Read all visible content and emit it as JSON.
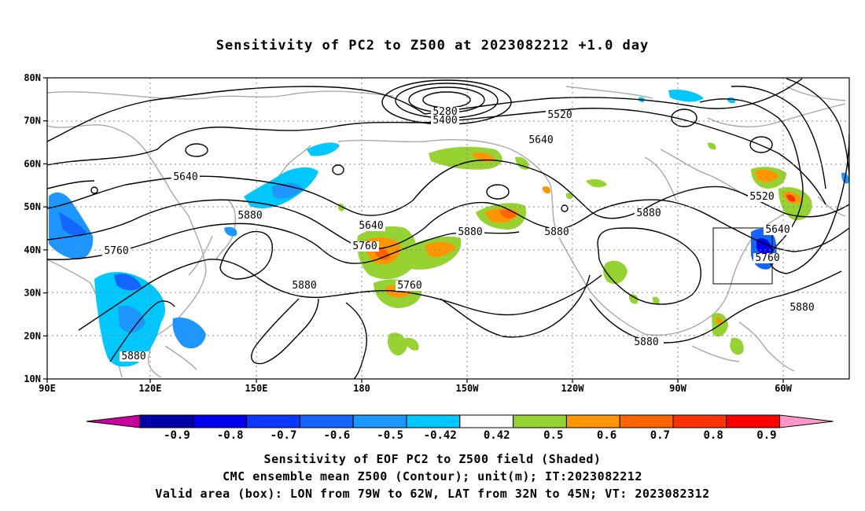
{
  "title": "Sensitivity of PC2 to Z500 at 2023082212 +1.0 day",
  "map": {
    "lat_labels": [
      "80N",
      "70N",
      "60N",
      "50N",
      "40N",
      "30N",
      "20N",
      "10N"
    ],
    "lon_labels": [
      "90E",
      "120E",
      "150E",
      "180",
      "150W",
      "120W",
      "90W",
      "60W"
    ],
    "contour_labels": [
      {
        "text": "5280"
      },
      {
        "text": "5400"
      },
      {
        "text": "5520"
      },
      {
        "text": "5640"
      },
      {
        "text": "5640"
      },
      {
        "text": "5880"
      },
      {
        "text": "5760"
      },
      {
        "text": "5640"
      },
      {
        "text": "5760"
      },
      {
        "text": "5880"
      },
      {
        "text": "5880"
      },
      {
        "text": "5880"
      },
      {
        "text": "5760"
      },
      {
        "text": "5880"
      },
      {
        "text": "5520"
      },
      {
        "text": "5640"
      },
      {
        "text": "5760"
      },
      {
        "text": "5880"
      },
      {
        "text": "5880"
      }
    ],
    "valid_box": {
      "lon_from": "79W",
      "lon_to": "62W",
      "lat_from": "32N",
      "lat_to": "45N"
    }
  },
  "colorbar": {
    "labels": [
      "-0.9",
      "-0.8",
      "-0.7",
      "-0.6",
      "-0.5",
      "-0.42",
      "0.42",
      "0.5",
      "0.6",
      "0.7",
      "0.8",
      "0.9"
    ],
    "colors": [
      "#0000aa",
      "#0000ee",
      "#0b38ff",
      "#1464ff",
      "#1e96ff",
      "#00c8ff",
      "#ffffff",
      "#96d232",
      "#ff9600",
      "#ff6400",
      "#ff3200",
      "#ff0000"
    ],
    "low_arrow_color": "#c800a0",
    "high_arrow_color": "#ff96c8"
  },
  "captions": {
    "line1": "Sensitivity of EOF PC2 to Z500 field (Shaded)",
    "line2": "CMC ensemble mean Z500 (Contour); unit(m); IT:2023082212",
    "line3": "Valid area (box): LON from 79W to 62W, LAT from 32N to 45N; VT: 2023082312"
  }
}
